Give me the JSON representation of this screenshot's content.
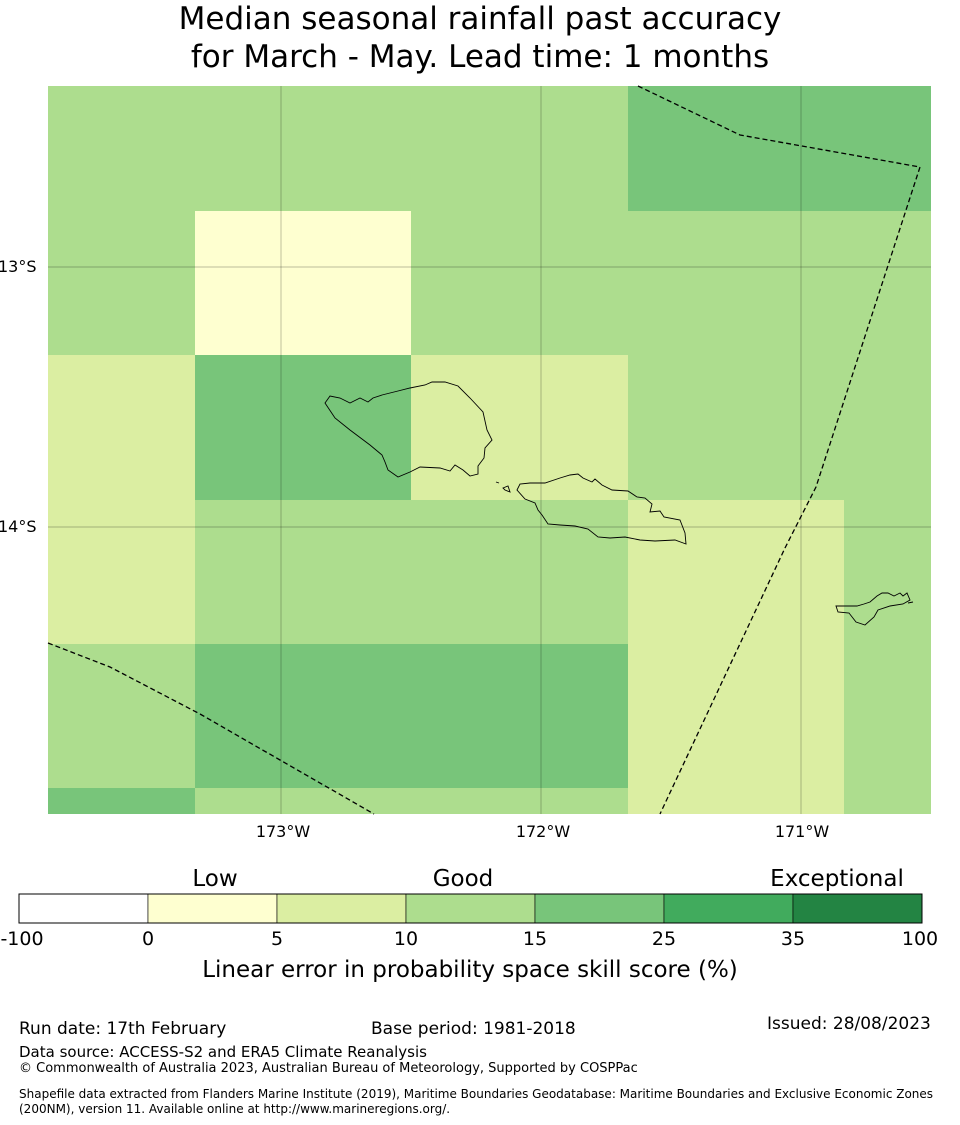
{
  "title": {
    "line1": "Median seasonal rainfall past accuracy",
    "line2": "for March - May. Lead time: 1 months"
  },
  "axes": {
    "lat_labels": [
      "13°S",
      "14°S"
    ],
    "lon_labels": [
      "173°W",
      "172°W",
      "171°W"
    ]
  },
  "legend": {
    "categories": [
      "Low",
      "Good",
      "Exceptional"
    ],
    "ticks": [
      "-100",
      "0",
      "5",
      "10",
      "15",
      "25",
      "35",
      "100"
    ],
    "colors": [
      "#ffffff",
      "#feffd0",
      "#dbeea2",
      "#addd8e",
      "#78c57a",
      "#41ab5d",
      "#238443"
    ],
    "title": "Linear error in probability space skill score (%)"
  },
  "grid_colors": {
    "c0_5": "#feffd0",
    "c5_10": "#dbeea2",
    "c10_15": "#addd8e",
    "c15_25": "#78c57a"
  },
  "footer": {
    "run_date": "Run date: 17th February",
    "base_period": "Base period: 1981-2018",
    "issued": "Issued: 28/08/2023",
    "data_source": "Data source: ACCESS-S2 and ERA5 Climate Reanalysis",
    "copyright": "© Commonwealth of Australia 2023, Australian Bureau of Meteorology, Supported by COSPPac",
    "shapefile": "Shapefile data extracted from Flanders Marine Institute (2019), Maritime Boundaries Geodatabase: Maritime Boundaries and Exclusive Economic Zones (200NM), version 11. Available online at http://www.marineregions.org/."
  }
}
